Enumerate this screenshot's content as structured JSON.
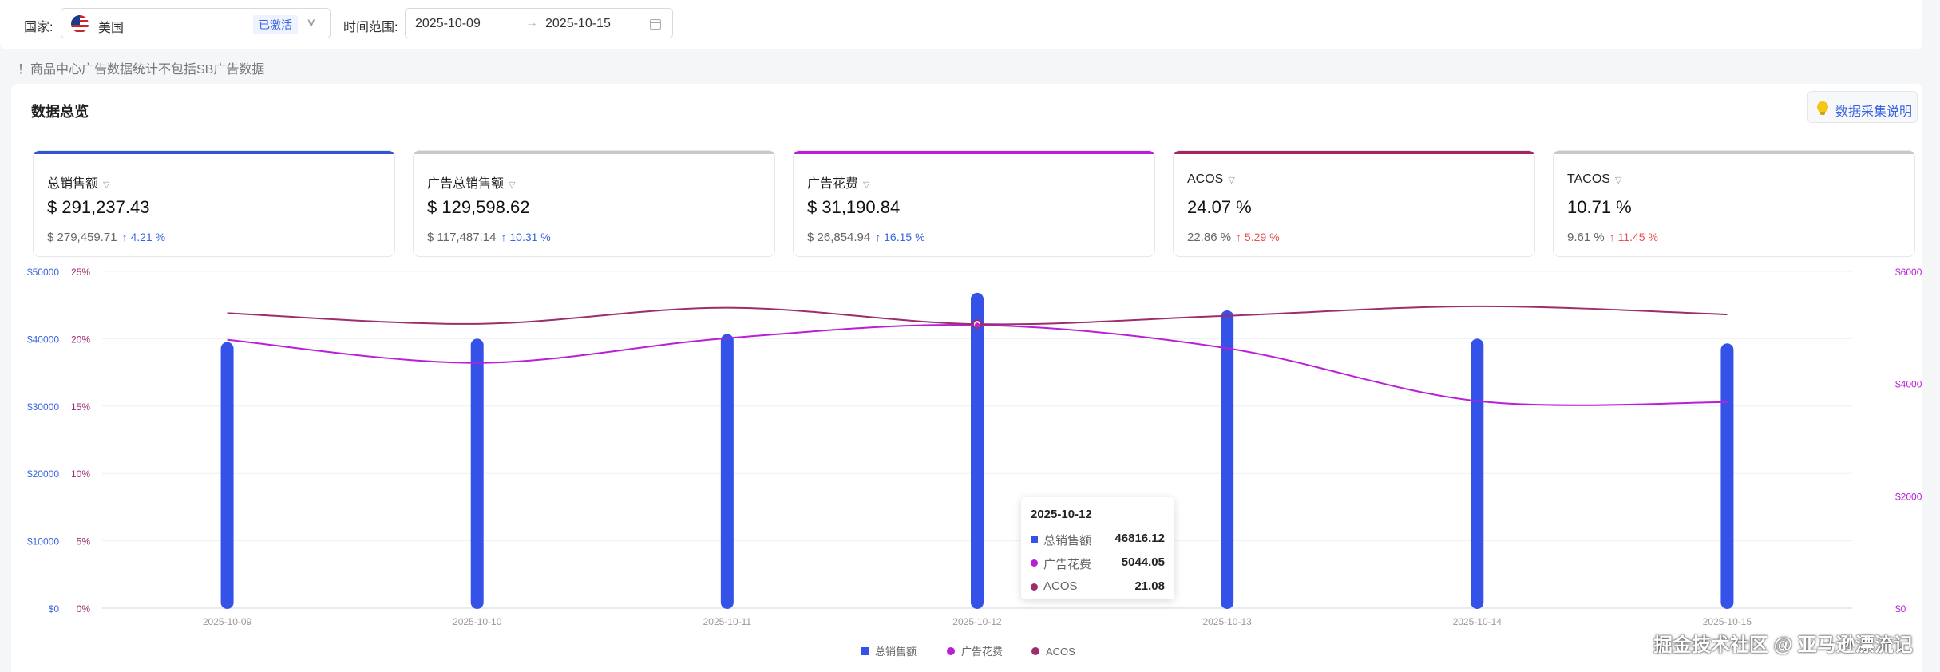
{
  "filters": {
    "country_label": "国家:",
    "country": {
      "name": "美国",
      "badge": "已激活",
      "flag_icon": "us-flag-icon"
    },
    "date_label": "时间范围:",
    "date_start": "2025-10-09",
    "date_separator": "→",
    "date_end": "2025-10-15"
  },
  "notice": "！商品中心广告数据统计不包括SB广告数据",
  "panel": {
    "title": "数据总览",
    "help_button": "数据采集说明"
  },
  "cards": [
    {
      "title": "总销售额",
      "value": "$ 291,237.43",
      "prev": "$ 279,459.71",
      "delta": "↑ 4.21 %",
      "trend": "up-good",
      "accent": "#2f55d4"
    },
    {
      "title": "广告总销售额",
      "value": "$ 129,598.62",
      "prev": "$ 117,487.14",
      "delta": "↑ 10.31 %",
      "trend": "up-good",
      "accent": "#c8c8c8"
    },
    {
      "title": "广告花费",
      "value": "$ 31,190.84",
      "prev": "$ 26,854.94",
      "delta": "↑ 16.15 %",
      "trend": "up-good",
      "accent": "#b81fd6"
    },
    {
      "title": "ACOS",
      "value": "24.07 %",
      "prev": "22.86 %",
      "delta": "↑ 5.29 %",
      "trend": "up-bad",
      "accent": "#a3275e"
    },
    {
      "title": "TACOS",
      "value": "10.71 %",
      "prev": "9.61 %",
      "delta": "↑ 11.45 %",
      "trend": "up-bad",
      "accent": "#c8c8c8"
    }
  ],
  "chart_data": {
    "type": "bar",
    "x": [
      "2025-10-09",
      "2025-10-10",
      "2025-10-11",
      "2025-10-12",
      "2025-10-13",
      "2025-10-14",
      "2025-10-15"
    ],
    "series": [
      {
        "name": "总销售额",
        "kind": "bar",
        "axis": "left-dollar",
        "color": "#3452e8",
        "values": [
          39500,
          40000,
          40700,
          46816.12,
          44200,
          40000,
          39300
        ]
      },
      {
        "name": "广告花费",
        "kind": "line",
        "axis": "right-dollar",
        "color": "#b81fd6",
        "values": [
          4780,
          4370,
          4810,
          5044.05,
          4630,
          3690,
          3670
        ]
      },
      {
        "name": "ACOS",
        "kind": "line",
        "axis": "left-percent",
        "color": "#9c2e6e",
        "values": [
          21.9,
          21.1,
          22.3,
          21.08,
          21.7,
          22.4,
          21.8
        ]
      }
    ],
    "axes": {
      "left_dollar": {
        "ticks": [
          "$0",
          "$10000",
          "$20000",
          "$30000",
          "$40000",
          "$50000"
        ],
        "range": [
          0,
          50000
        ]
      },
      "left_percent": {
        "ticks": [
          "0%",
          "5%",
          "10%",
          "15%",
          "20%",
          "25%"
        ],
        "range": [
          0,
          25
        ]
      },
      "right_dollar": {
        "ticks": [
          "$0",
          "$2000",
          "$4000",
          "$6000"
        ],
        "range": [
          0,
          6000
        ]
      }
    },
    "grid": true,
    "legend_position": "bottom-center",
    "legend": [
      "总销售额",
      "广告花费",
      "ACOS"
    ]
  },
  "tooltip": {
    "date": "2025-10-12",
    "rows": [
      {
        "name": "总销售额",
        "value": "46816.12",
        "color": "#3452e8"
      },
      {
        "name": "广告花费",
        "value": "5044.05",
        "color": "#b81fd6"
      },
      {
        "name": "ACOS",
        "value": "21.08",
        "color": "#9c2e6e"
      }
    ]
  },
  "watermark": "掘金技术社区 @ 亚马逊漂流记"
}
